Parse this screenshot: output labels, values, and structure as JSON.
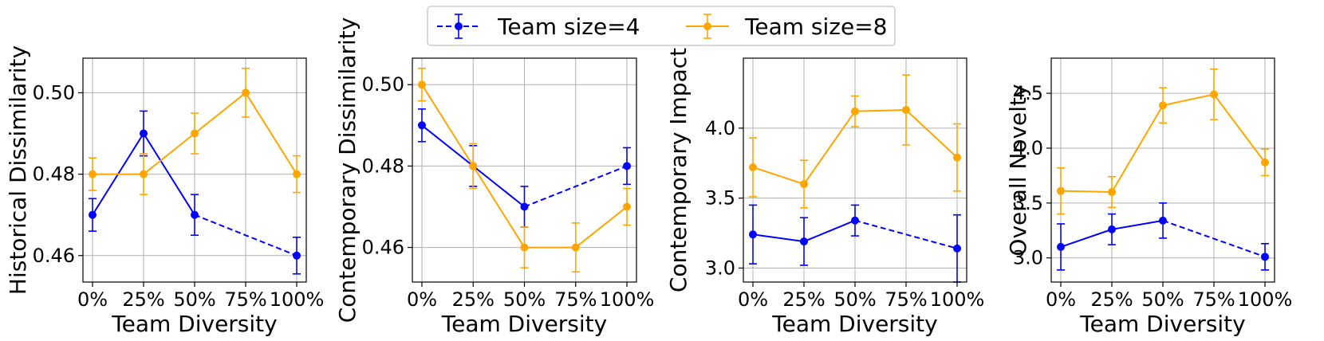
{
  "legend": {
    "entries": [
      {
        "label": "Team size=4",
        "color": "#0000ff",
        "style": "dashed"
      },
      {
        "label": "Team size=8",
        "color": "#ffa500",
        "style": "solid"
      }
    ]
  },
  "chart_data": [
    {
      "type": "line",
      "xlabel": "Team Diversity",
      "ylabel": "Historical Dissimilarity",
      "categories": [
        "0%",
        "25%",
        "50%",
        "75%",
        "100%"
      ],
      "yticks": [
        "0.46",
        "0.48",
        "0.50"
      ],
      "ylim": [
        0.4535,
        0.5085
      ],
      "series": [
        {
          "name": "Team size=4",
          "x": [
            0,
            25,
            50,
            100
          ],
          "values": [
            0.47,
            0.49,
            0.47,
            0.46
          ],
          "err": [
            0.004,
            0.0055,
            0.005,
            0.0045
          ],
          "dashed_from": 2
        },
        {
          "name": "Team size=8",
          "x": [
            0,
            25,
            50,
            75,
            100
          ],
          "values": [
            0.48,
            0.48,
            0.49,
            0.5,
            0.48
          ],
          "err": [
            0.004,
            0.005,
            0.005,
            0.006,
            0.0045
          ]
        }
      ]
    },
    {
      "type": "line",
      "xlabel": "Team Diversity",
      "ylabel": "Contemporary Dissimilarity",
      "categories": [
        "0%",
        "25%",
        "50%",
        "75%",
        "100%"
      ],
      "yticks": [
        "0.46",
        "0.48",
        "0.50"
      ],
      "ylim": [
        0.4515,
        0.5065
      ],
      "series": [
        {
          "name": "Team size=4",
          "x": [
            0,
            25,
            50,
            100
          ],
          "values": [
            0.49,
            0.48,
            0.47,
            0.48
          ],
          "err": [
            0.004,
            0.005,
            0.005,
            0.0045
          ],
          "dashed_from": 2
        },
        {
          "name": "Team size=8",
          "x": [
            0,
            25,
            50,
            75,
            100
          ],
          "values": [
            0.5,
            0.48,
            0.46,
            0.46,
            0.47
          ],
          "err": [
            0.004,
            0.0055,
            0.005,
            0.006,
            0.0045
          ]
        }
      ]
    },
    {
      "type": "line",
      "xlabel": "Team Diversity",
      "ylabel": "Contemporary Impact",
      "categories": [
        "0%",
        "25%",
        "50%",
        "75%",
        "100%"
      ],
      "yticks": [
        "3.0",
        "3.5",
        "4.0"
      ],
      "ylim": [
        2.9,
        4.5
      ],
      "series": [
        {
          "name": "Team size=4",
          "x": [
            0,
            25,
            50,
            100
          ],
          "values": [
            3.24,
            3.19,
            3.34,
            3.14
          ],
          "err": [
            0.21,
            0.17,
            0.11,
            0.24
          ],
          "dashed_from": 2
        },
        {
          "name": "Team size=8",
          "x": [
            0,
            25,
            50,
            75,
            100
          ],
          "values": [
            3.72,
            3.6,
            4.12,
            4.13,
            3.79
          ],
          "err": [
            0.21,
            0.17,
            0.11,
            0.25,
            0.24
          ]
        }
      ]
    },
    {
      "type": "line",
      "xlabel": "Team Diversity",
      "ylabel": "Overall Novelty",
      "categories": [
        "0%",
        "25%",
        "50%",
        "75%",
        "100%"
      ],
      "yticks": [
        "3.0",
        "3.5",
        "4.0",
        "4.5"
      ],
      "ylim": [
        2.78,
        4.82
      ],
      "series": [
        {
          "name": "Team size=4",
          "x": [
            0,
            25,
            50,
            100
          ],
          "values": [
            3.1,
            3.26,
            3.34,
            3.01
          ],
          "err": [
            0.21,
            0.14,
            0.16,
            0.12
          ],
          "dashed_from": 2
        },
        {
          "name": "Team size=8",
          "x": [
            0,
            25,
            50,
            75,
            100
          ],
          "values": [
            3.61,
            3.6,
            4.39,
            4.49,
            3.87
          ],
          "err": [
            0.21,
            0.14,
            0.16,
            0.23,
            0.12
          ]
        }
      ]
    }
  ]
}
